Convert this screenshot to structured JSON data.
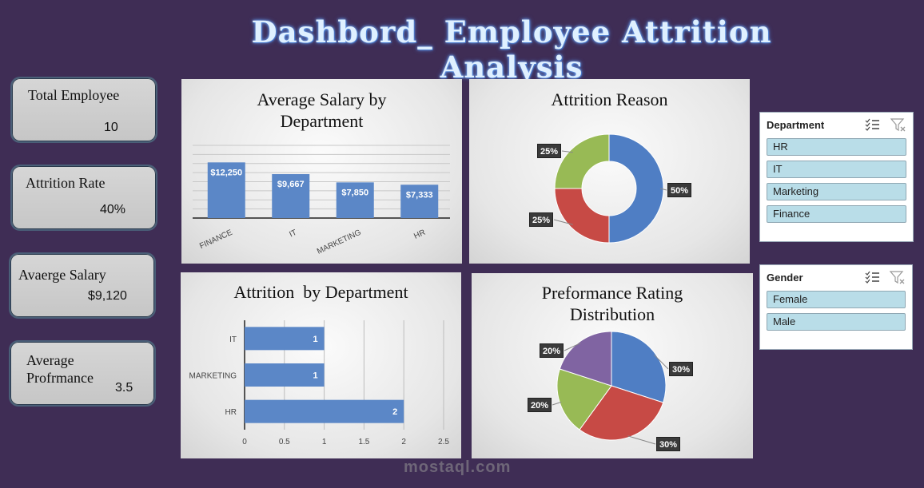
{
  "title": "Dashbord_ Employee Attrition Analysis",
  "kpis": [
    {
      "label": "Total Employee",
      "value": "10"
    },
    {
      "label": "Attrition Rate",
      "value": "40%"
    },
    {
      "label": "Avaerge Salary",
      "value": "$9,120"
    },
    {
      "label": "Average Profrmance",
      "value": "3.5"
    }
  ],
  "chart_data": [
    {
      "type": "bar",
      "title": "Average Salary by Department",
      "categories": [
        "FINANCE",
        "IT",
        "MARKETING",
        "HR"
      ],
      "values": [
        12250,
        9667,
        7850,
        7333
      ],
      "data_labels": [
        "$12,250",
        "$9,667",
        "$7,850",
        "$7,333"
      ],
      "ylim": [
        0,
        16000
      ],
      "grid": true,
      "color": "#5b87c7"
    },
    {
      "type": "pie",
      "variant": "donut",
      "title": "Attrition Reason",
      "values": [
        50,
        25,
        25
      ],
      "data_labels": [
        "50%",
        "25%",
        "25%"
      ],
      "colors": [
        "#4f7ec4",
        "#c74a45",
        "#98ba55"
      ]
    },
    {
      "type": "bar",
      "orientation": "horizontal",
      "title": "Attrition  by Department",
      "categories": [
        "IT",
        "MARKETING",
        "HR"
      ],
      "values": [
        1,
        1,
        2
      ],
      "data_labels": [
        "1",
        "1",
        "2"
      ],
      "xlim": [
        0,
        2.5
      ],
      "xticks": [
        "0",
        "0.5",
        "1",
        "1.5",
        "2",
        "2.5"
      ],
      "grid": true,
      "color": "#5b87c7"
    },
    {
      "type": "pie",
      "title": "Preformance Rating Distribution",
      "values": [
        30,
        30,
        20,
        20
      ],
      "data_labels": [
        "30%",
        "30%",
        "20%",
        "20%"
      ],
      "colors": [
        "#4f7ec4",
        "#c74a45",
        "#98ba55",
        "#8064a2"
      ]
    }
  ],
  "slicers": [
    {
      "header": "Department",
      "items": [
        "HR",
        "IT",
        "Marketing",
        "Finance"
      ]
    },
    {
      "header": "Gender",
      "items": [
        "Female",
        "Male"
      ]
    }
  ],
  "watermark": "mostaql.com",
  "icons": {
    "multi_select": "multi-select-icon",
    "clear_filter": "clear-filter-icon"
  }
}
